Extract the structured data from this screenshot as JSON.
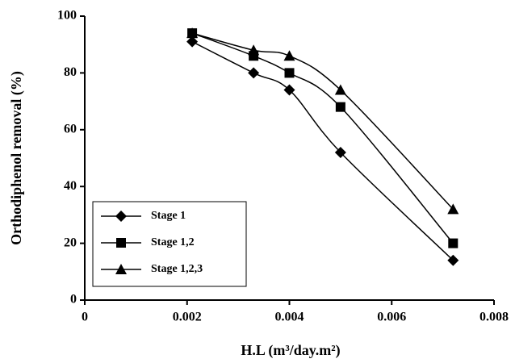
{
  "chart_data": {
    "type": "line",
    "x_label": "H.L (m³/day.m²)",
    "y_label": "Orthodiphenol removal (%)",
    "x": [
      0.0021,
      0.0033,
      0.004,
      0.005,
      0.0072
    ],
    "series": [
      {
        "name": "Stage 1",
        "color": "#000000",
        "marker": "diamond",
        "values": [
          91,
          80,
          74,
          52,
          14
        ]
      },
      {
        "name": "Stage 1,2",
        "color": "#000000",
        "marker": "square",
        "values": [
          94,
          86,
          80,
          68,
          20
        ]
      },
      {
        "name": "Stage 1,2,3",
        "color": "#000000",
        "marker": "triangle",
        "values": [
          94,
          88,
          86,
          74,
          32
        ]
      }
    ],
    "xlim": [
      0,
      0.008
    ],
    "xticks": [
      0,
      0.002,
      0.004,
      0.006,
      0.008
    ],
    "ylim": [
      0,
      100
    ],
    "yticks": [
      0,
      20,
      40,
      60,
      80,
      100
    ],
    "grid": false,
    "smooth": true,
    "legend": "lower left"
  }
}
